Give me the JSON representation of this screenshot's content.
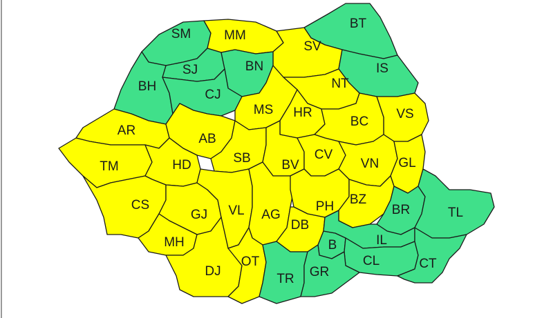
{
  "colors": {
    "yellow": "#ffff00",
    "green": "#40e08a",
    "border": "#1a1a1a"
  },
  "counties": [
    {
      "code": "SM",
      "level": "green"
    },
    {
      "code": "MM",
      "level": "yellow"
    },
    {
      "code": "BT",
      "level": "green"
    },
    {
      "code": "SV",
      "level": "yellow"
    },
    {
      "code": "SJ",
      "level": "green"
    },
    {
      "code": "BN",
      "level": "green"
    },
    {
      "code": "IS",
      "level": "green"
    },
    {
      "code": "BH",
      "level": "green"
    },
    {
      "code": "CJ",
      "level": "green"
    },
    {
      "code": "NT",
      "level": "yellow"
    },
    {
      "code": "MS",
      "level": "yellow"
    },
    {
      "code": "HR",
      "level": "yellow"
    },
    {
      "code": "VS",
      "level": "yellow"
    },
    {
      "code": "AR",
      "level": "yellow"
    },
    {
      "code": "BC",
      "level": "yellow"
    },
    {
      "code": "AB",
      "level": "yellow"
    },
    {
      "code": "TM",
      "level": "yellow"
    },
    {
      "code": "HD",
      "level": "yellow"
    },
    {
      "code": "SB",
      "level": "yellow"
    },
    {
      "code": "BV",
      "level": "yellow"
    },
    {
      "code": "CV",
      "level": "yellow"
    },
    {
      "code": "VN",
      "level": "yellow"
    },
    {
      "code": "GL",
      "level": "yellow"
    },
    {
      "code": "CS",
      "level": "yellow"
    },
    {
      "code": "GJ",
      "level": "yellow"
    },
    {
      "code": "VL",
      "level": "yellow"
    },
    {
      "code": "AG",
      "level": "yellow"
    },
    {
      "code": "PH",
      "level": "yellow"
    },
    {
      "code": "BZ",
      "level": "yellow"
    },
    {
      "code": "BR",
      "level": "green"
    },
    {
      "code": "TL",
      "level": "green"
    },
    {
      "code": "MH",
      "level": "yellow"
    },
    {
      "code": "DB",
      "level": "yellow"
    },
    {
      "code": "B",
      "level": "green"
    },
    {
      "code": "IL",
      "level": "green"
    },
    {
      "code": "CL",
      "level": "green"
    },
    {
      "code": "CT",
      "level": "green"
    },
    {
      "code": "DJ",
      "level": "yellow"
    },
    {
      "code": "OT",
      "level": "yellow"
    },
    {
      "code": "TR",
      "level": "green"
    },
    {
      "code": "GR",
      "level": "green"
    }
  ]
}
